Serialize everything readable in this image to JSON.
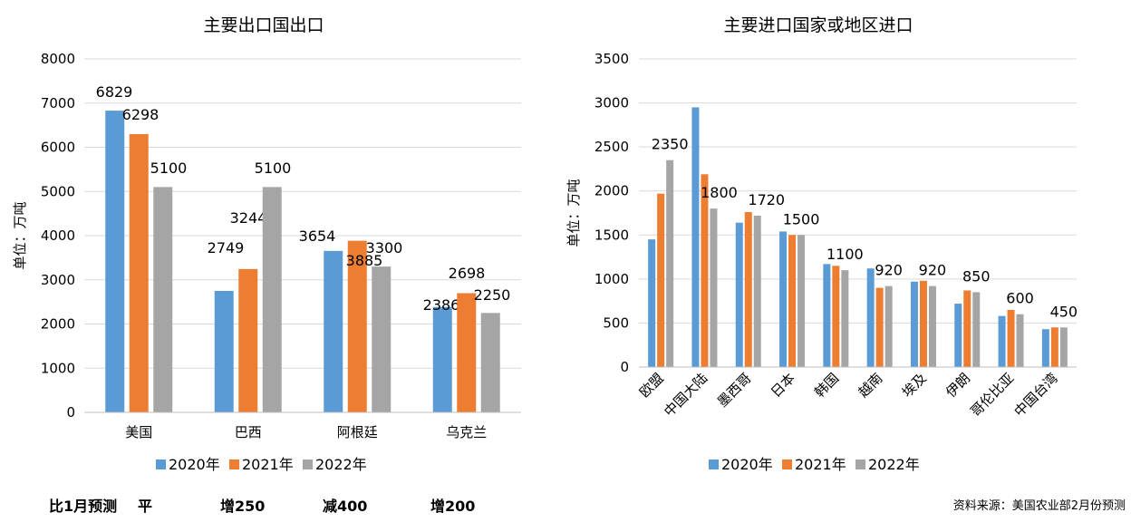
{
  "chart_data": [
    {
      "type": "bar",
      "title": "主要出口国出口",
      "ylabel": "单位：万吨",
      "xlabel": "",
      "categories": [
        "美国",
        "巴西",
        "阿根廷",
        "乌克兰"
      ],
      "series": [
        {
          "name": "2020年",
          "color": "#5B9BD5",
          "values": [
            6829,
            2749,
            3654,
            2386
          ]
        },
        {
          "name": "2021年",
          "color": "#ED7D31",
          "values": [
            6298,
            3244,
            3885,
            2698
          ]
        },
        {
          "name": "2022年",
          "color": "#A5A5A5",
          "values": [
            5100,
            5100,
            3300,
            2250
          ]
        }
      ],
      "ylim": [
        0,
        8000
      ],
      "yticks": [
        0,
        1000,
        2000,
        3000,
        4000,
        5000,
        6000,
        7000,
        8000
      ],
      "grid": true,
      "legend": "bottom",
      "data_labels": "all series"
    },
    {
      "type": "bar",
      "title": "主要进口国家或地区进口",
      "ylabel": "单位：万吨",
      "xlabel": "",
      "categories": [
        "欧盟",
        "中国大陆",
        "墨西哥",
        "日本",
        "韩国",
        "越南",
        "埃及",
        "伊朗",
        "哥伦比亚",
        "中国台湾"
      ],
      "series": [
        {
          "name": "2020年",
          "color": "#5B9BD5",
          "values": [
            1450,
            2950,
            1640,
            1540,
            1170,
            1120,
            970,
            720,
            580,
            430
          ]
        },
        {
          "name": "2021年",
          "color": "#ED7D31",
          "values": [
            1970,
            2190,
            1760,
            1500,
            1150,
            900,
            980,
            870,
            650,
            450
          ]
        },
        {
          "name": "2022年",
          "color": "#A5A5A5",
          "values": [
            2350,
            1800,
            1720,
            1500,
            1100,
            920,
            920,
            850,
            600,
            450
          ]
        }
      ],
      "ylim": [
        0,
        3500
      ],
      "yticks": [
        0,
        500,
        1000,
        1500,
        2000,
        2500,
        3000,
        3500
      ],
      "grid": true,
      "legend": "bottom",
      "data_labels": "2022年 only"
    }
  ],
  "notes": {
    "label": "比1月预测",
    "items": [
      "平",
      "增250",
      "减400",
      "增200"
    ]
  },
  "source": "资料来源：美国农业部2月份预测"
}
